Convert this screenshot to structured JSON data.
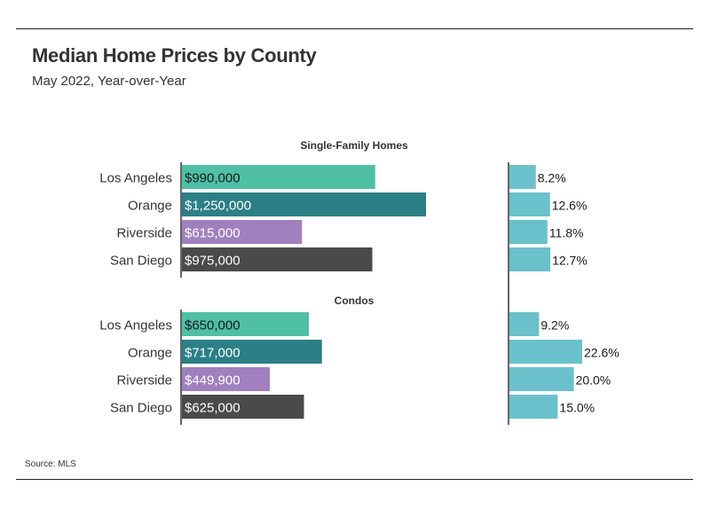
{
  "title": "Median Home Prices by County",
  "subtitle": "May 2022, Year-over-Year",
  "source": "Source: MLS",
  "colors": {
    "Los Angeles": "#4fbfa6",
    "Orange": "#2b7f86",
    "Riverside": "#a080be",
    "San Diego": "#4a4a4a",
    "change": "#6ac1cb"
  },
  "chart_data": {
    "type": "bar",
    "orientation": "horizontal",
    "categories": [
      "Los Angeles",
      "Orange",
      "Riverside",
      "San Diego"
    ],
    "groups": [
      {
        "name": "Single-Family Homes",
        "prices": [
          990000,
          1250000,
          615000,
          975000
        ],
        "price_labels": [
          "$990,000",
          "$1,250,000",
          "$615,000",
          "$975,000"
        ],
        "changes": [
          8.2,
          12.6,
          11.8,
          12.7
        ],
        "change_labels": [
          "8.2%",
          "12.6%",
          "11.8%",
          "12.7%"
        ]
      },
      {
        "name": "Condos",
        "prices": [
          650000,
          717000,
          449900,
          625000
        ],
        "price_labels": [
          "$650,000",
          "$717,000",
          "$449,900",
          "$625,000"
        ],
        "changes": [
          9.2,
          22.6,
          20.0,
          15.0
        ],
        "change_labels": [
          "9.2%",
          "22.6%",
          "20.0%",
          "15.0%"
        ]
      }
    ],
    "price_scale_max": 1250000,
    "change_scale_max": 22.6
  }
}
